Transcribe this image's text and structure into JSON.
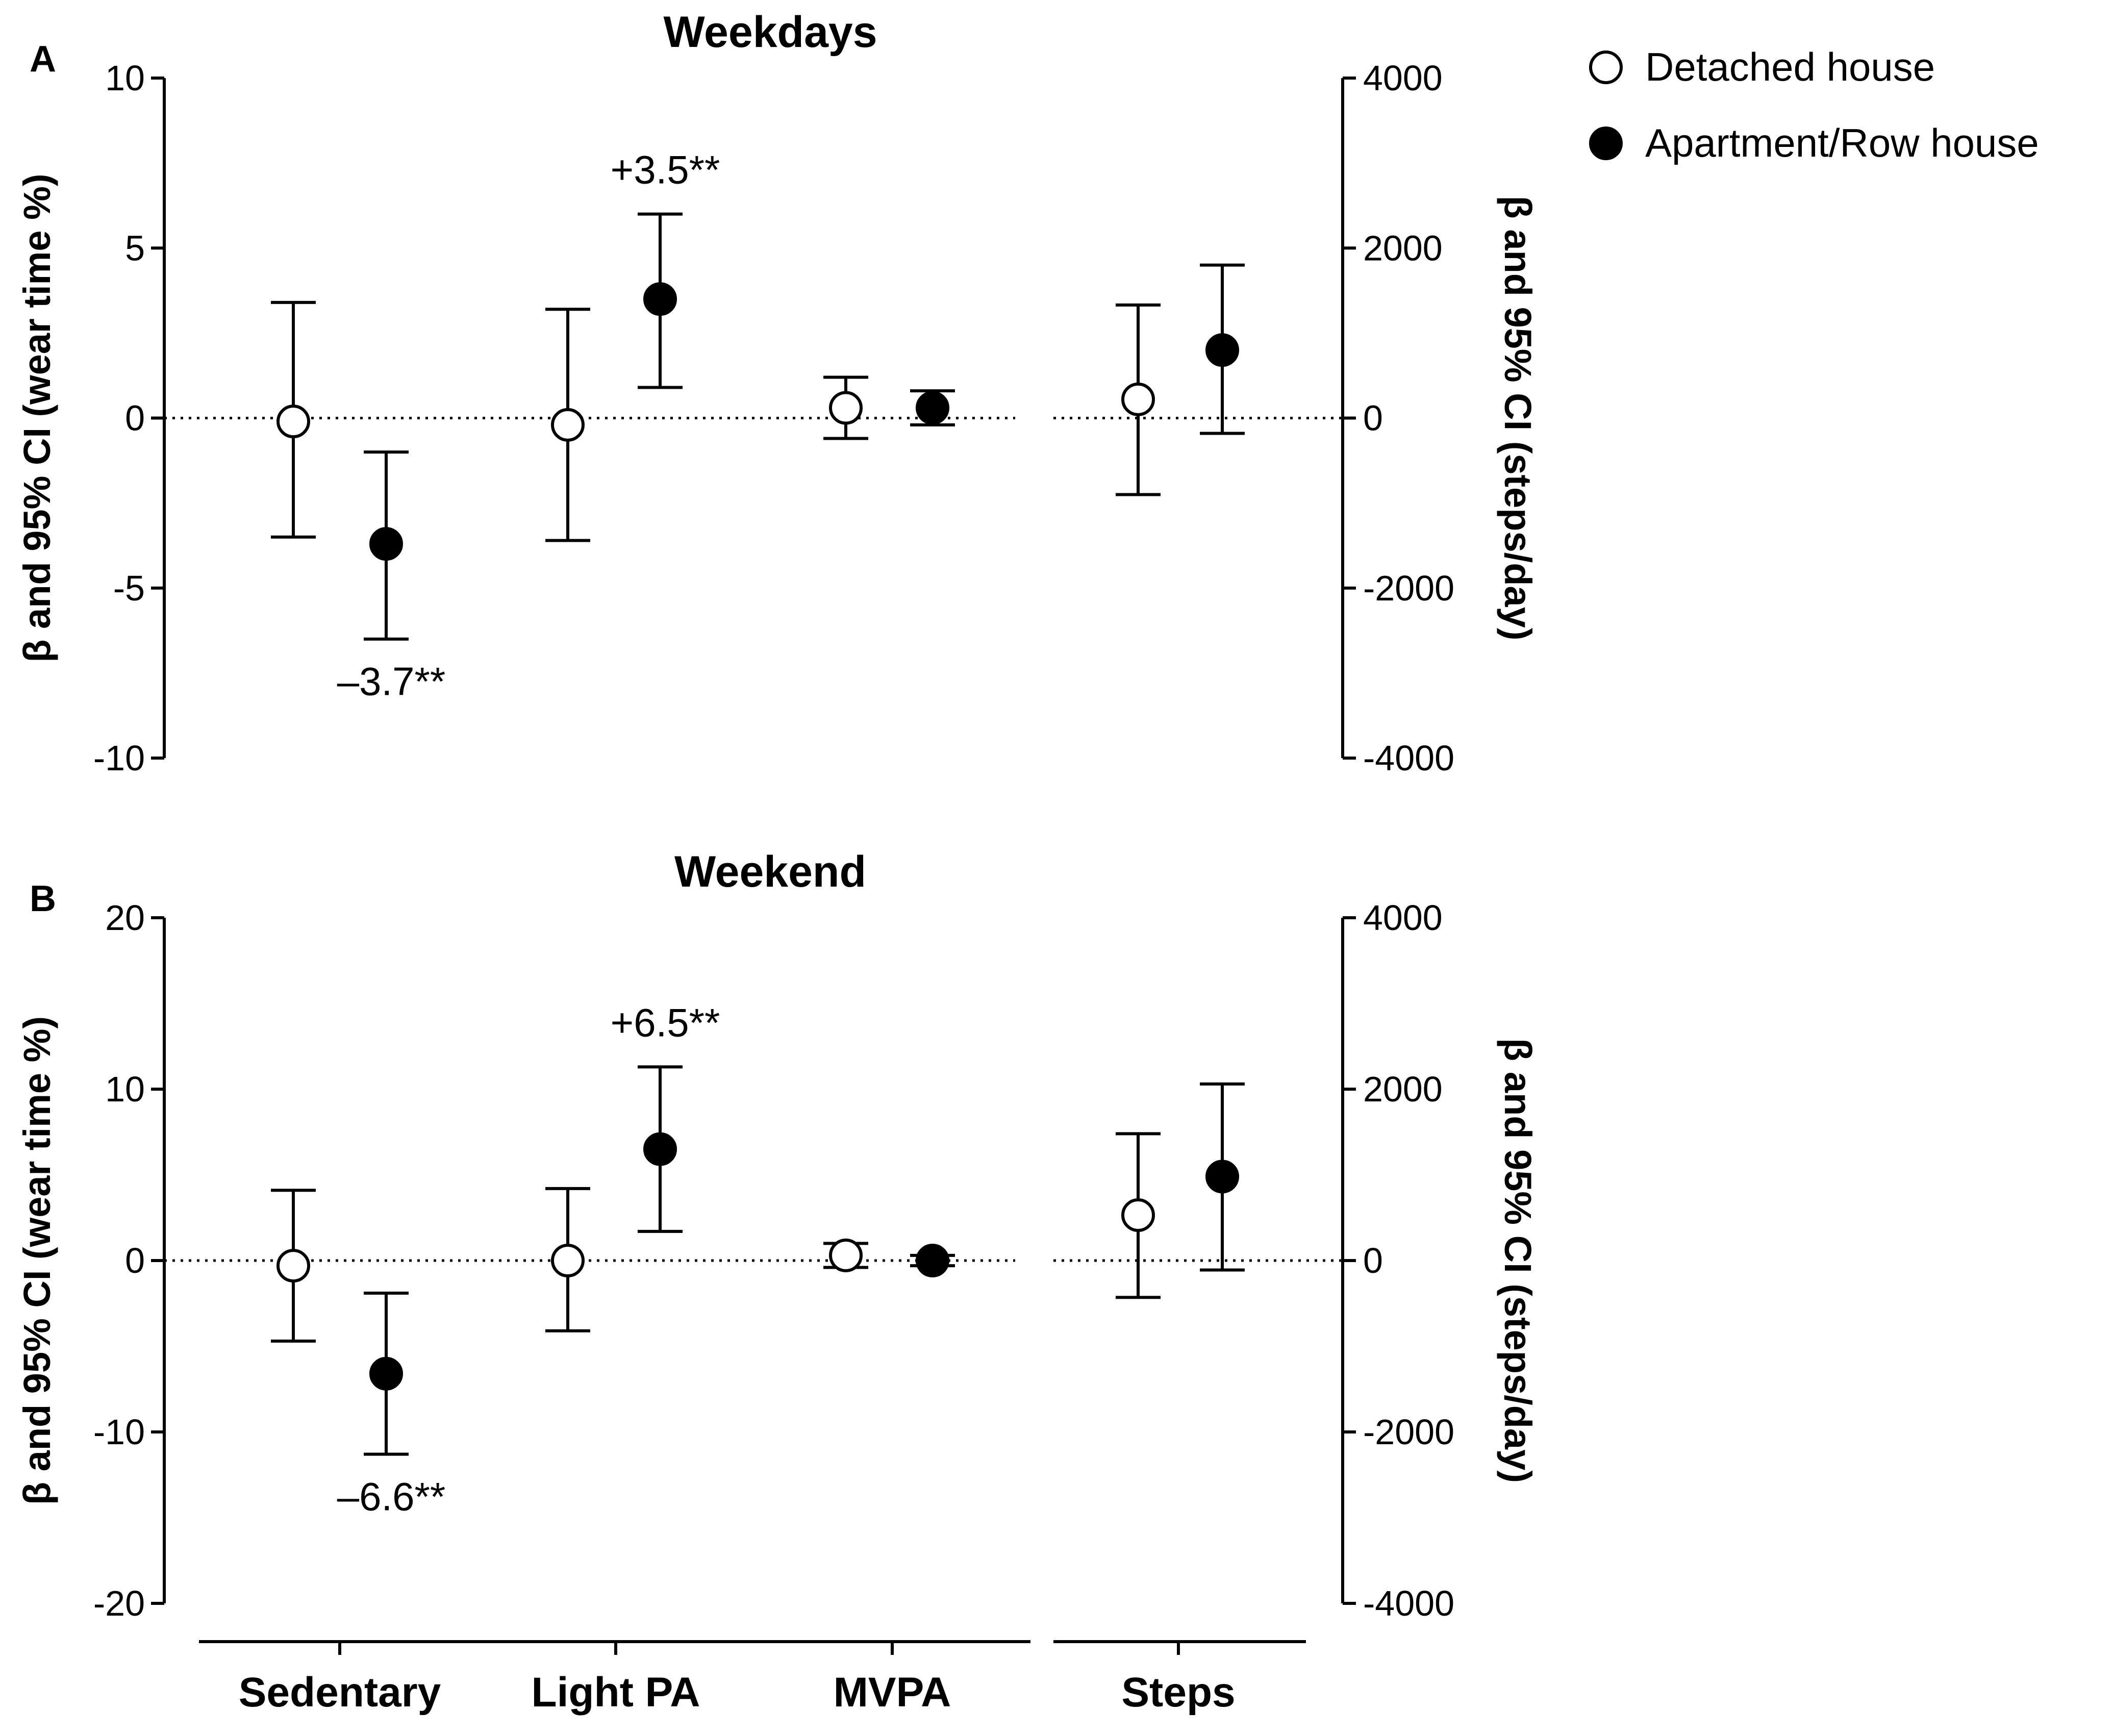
{
  "legend": {
    "items": [
      {
        "label": "Detached house",
        "marker": "open-circle"
      },
      {
        "label": "Apartment/Row house",
        "marker": "filled-circle"
      }
    ]
  },
  "categories": [
    "Sedentary",
    "Light PA",
    "MVPA",
    "Steps"
  ],
  "chart_data": [
    {
      "type": "scatter",
      "panel_letter": "A",
      "title": "Weekdays",
      "ylabel_left": "β and 95% CI (wear time %)",
      "ylabel_right": "β and 95% CI (steps/day)",
      "ylim_left": [
        -10,
        10
      ],
      "yticks_left": [
        10,
        5,
        0,
        -5,
        -10
      ],
      "ytick_labels_left": [
        "10",
        "5",
        "0",
        "-5",
        "-10"
      ],
      "ylim_right": [
        -4000,
        4000
      ],
      "yticks_right": [
        4000,
        2000,
        0,
        -2000,
        -4000
      ],
      "ytick_labels_right": [
        "4000",
        "2000",
        "0",
        "-2000",
        "-4000"
      ],
      "series": [
        {
          "name": "Detached house",
          "marker": "open-circle",
          "points": [
            {
              "category": "Sedentary",
              "axis": "left",
              "y": -0.1,
              "ci": [
                -3.5,
                3.4
              ]
            },
            {
              "category": "Light PA",
              "axis": "left",
              "y": -0.2,
              "ci": [
                -3.6,
                3.2
              ]
            },
            {
              "category": "MVPA",
              "axis": "left",
              "y": 0.3,
              "ci": [
                -0.6,
                1.2
              ]
            },
            {
              "category": "Steps",
              "axis": "right",
              "y": 220,
              "ci": [
                -900,
                1330
              ]
            }
          ]
        },
        {
          "name": "Apartment/Row house",
          "marker": "filled-circle",
          "points": [
            {
              "category": "Sedentary",
              "axis": "left",
              "y": -3.7,
              "ci": [
                -6.5,
                -1.0
              ]
            },
            {
              "category": "Light PA",
              "axis": "left",
              "y": 3.5,
              "ci": [
                0.9,
                6.0
              ]
            },
            {
              "category": "MVPA",
              "axis": "left",
              "y": 0.3,
              "ci": [
                -0.2,
                0.8
              ]
            },
            {
              "category": "Steps",
              "axis": "right",
              "y": 800,
              "ci": [
                -180,
                1800
              ]
            }
          ]
        }
      ],
      "annotations": [
        {
          "text": "–3.7**",
          "category": "Sedentary",
          "series": "Apartment/Row house",
          "position": "below"
        },
        {
          "text": "+3.5**",
          "category": "Light PA",
          "series": "Apartment/Row house",
          "position": "above"
        }
      ]
    },
    {
      "type": "scatter",
      "panel_letter": "B",
      "title": "Weekend",
      "ylabel_left": "β and 95% CI (wear time %)",
      "ylabel_right": "β and 95% CI (steps/day)",
      "ylim_left": [
        -20,
        20
      ],
      "yticks_left": [
        20,
        10,
        0,
        -10,
        -20
      ],
      "ytick_labels_left": [
        "20",
        "10",
        "0",
        "-10",
        "-20"
      ],
      "ylim_right": [
        -4000,
        4000
      ],
      "yticks_right": [
        4000,
        2000,
        0,
        -2000,
        -4000
      ],
      "ytick_labels_right": [
        "4000",
        "2000",
        "0",
        "-2000",
        "-4000"
      ],
      "series": [
        {
          "name": "Detached house",
          "marker": "open-circle",
          "points": [
            {
              "category": "Sedentary",
              "axis": "left",
              "y": -0.3,
              "ci": [
                -4.7,
                4.1
              ]
            },
            {
              "category": "Light PA",
              "axis": "left",
              "y": 0.0,
              "ci": [
                -4.1,
                4.2
              ]
            },
            {
              "category": "MVPA",
              "axis": "left",
              "y": 0.3,
              "ci": [
                -0.4,
                1.0
              ]
            },
            {
              "category": "Steps",
              "axis": "right",
              "y": 530,
              "ci": [
                -430,
                1480
              ]
            }
          ]
        },
        {
          "name": "Apartment/Row house",
          "marker": "filled-circle",
          "points": [
            {
              "category": "Sedentary",
              "axis": "left",
              "y": -6.6,
              "ci": [
                -11.3,
                -1.9
              ]
            },
            {
              "category": "Light PA",
              "axis": "left",
              "y": 6.5,
              "ci": [
                1.7,
                11.3
              ]
            },
            {
              "category": "MVPA",
              "axis": "left",
              "y": 0.0,
              "ci": [
                -0.3,
                0.3
              ]
            },
            {
              "category": "Steps",
              "axis": "right",
              "y": 980,
              "ci": [
                -110,
                2060
              ]
            }
          ]
        }
      ],
      "annotations": [
        {
          "text": "–6.6**",
          "category": "Sedentary",
          "series": "Apartment/Row house",
          "position": "below"
        },
        {
          "text": "+6.5**",
          "category": "Light PA",
          "series": "Apartment/Row house",
          "position": "above"
        }
      ]
    }
  ]
}
